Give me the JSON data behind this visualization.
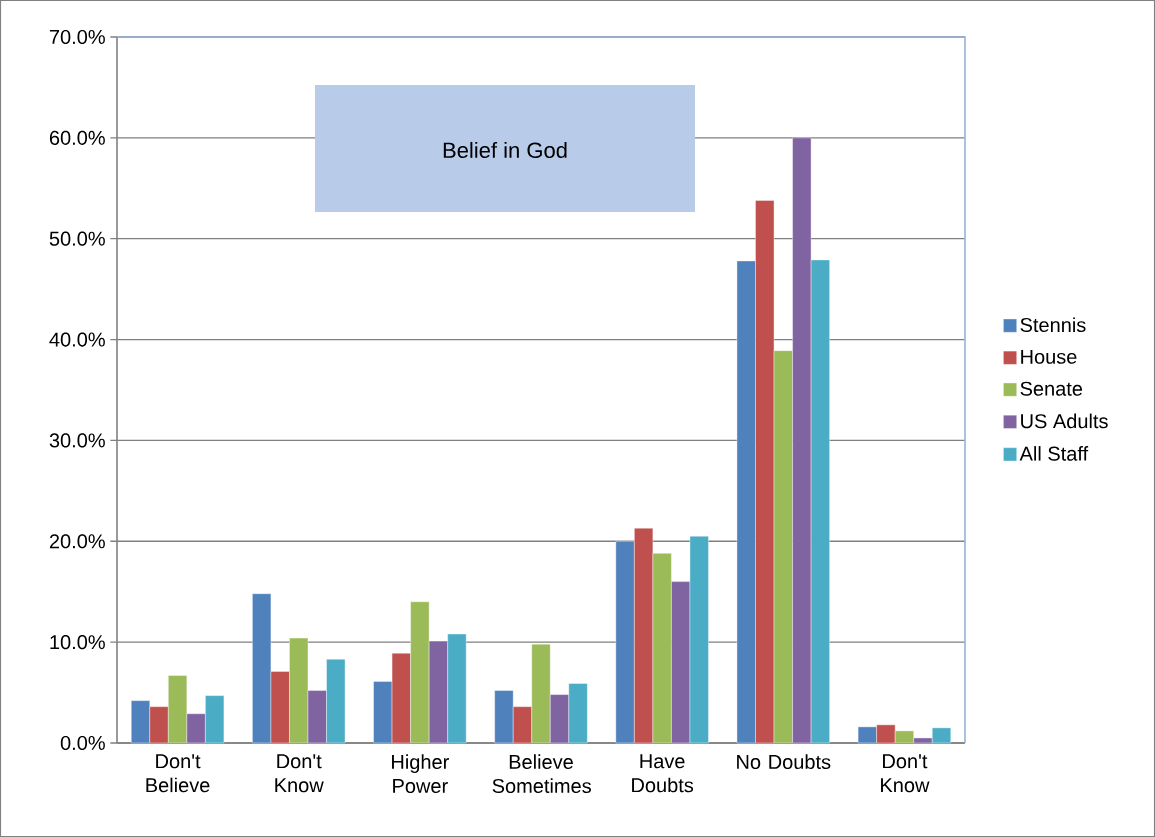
{
  "chart_data": {
    "type": "bar",
    "title": "Belief in God",
    "categories": [
      "Don't Believe",
      "Don't Know",
      "Higher Power",
      "Believe Sometimes",
      "Have Doubts",
      "No Doubts",
      "Don't Know"
    ],
    "series": [
      {
        "name": "Stennis",
        "color": "#4f81bd",
        "values": [
          4.2,
          14.8,
          6.1,
          5.2,
          20.0,
          47.8,
          1.6
        ]
      },
      {
        "name": "House",
        "color": "#c0504d",
        "values": [
          3.6,
          7.1,
          8.9,
          3.6,
          21.3,
          53.8,
          1.8
        ]
      },
      {
        "name": "Senate",
        "color": "#9bbb59",
        "values": [
          6.7,
          10.4,
          14.0,
          9.8,
          18.8,
          38.9,
          1.2
        ]
      },
      {
        "name": "US Adults",
        "color": "#8064a2",
        "values": [
          2.9,
          5.2,
          10.1,
          4.8,
          16.0,
          60.0,
          0.5
        ]
      },
      {
        "name": "All Staff",
        "color": "#4bacc6",
        "values": [
          4.7,
          8.3,
          10.8,
          5.9,
          20.5,
          47.9,
          1.5
        ]
      }
    ],
    "ylim": [
      0,
      70
    ],
    "yticks": [
      {
        "value": 0,
        "label": "0.0%"
      },
      {
        "value": 10,
        "label": "10.0%"
      },
      {
        "value": 20,
        "label": "20.0%"
      },
      {
        "value": 30,
        "label": "30.0%"
      },
      {
        "value": 40,
        "label": "40.0%"
      },
      {
        "value": 50,
        "label": "50.0%"
      },
      {
        "value": 60,
        "label": "60.0%"
      },
      {
        "value": 70,
        "label": "70.0%"
      }
    ],
    "grid": "y",
    "legend": "right"
  }
}
